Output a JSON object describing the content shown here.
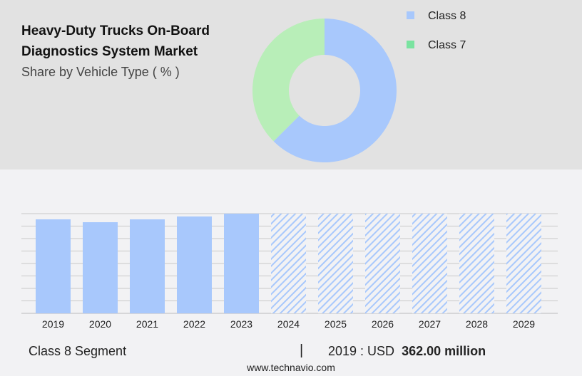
{
  "header": {
    "title_line1": "Heavy-Duty Trucks On-Board",
    "title_line2": "Diagnostics System Market",
    "subtitle": "Share by Vehicle Type ( % )"
  },
  "chart_data": [
    {
      "type": "pie",
      "variant": "donut",
      "title": "Heavy-Duty Trucks On-Board Diagnostics System Market",
      "subtitle": "Share by Vehicle Type ( % )",
      "legend_position": "right",
      "slices": [
        {
          "name": "Class 8",
          "value": 62.5,
          "color": "#a8c8fc"
        },
        {
          "name": "Class 7",
          "value": 37.5,
          "color": "#b8eeb8"
        }
      ],
      "legend_colors": [
        "#a8c8fc",
        "#7ae3a0"
      ]
    },
    {
      "type": "bar",
      "categories": [
        "2019",
        "2020",
        "2021",
        "2022",
        "2023",
        "2024",
        "2025",
        "2026",
        "2027",
        "2028",
        "2029"
      ],
      "values": [
        362,
        351,
        362,
        373,
        384,
        null,
        null,
        null,
        null,
        null,
        null
      ],
      "forecast_categories": [
        "2024",
        "2025",
        "2026",
        "2027",
        "2028",
        "2029"
      ],
      "ylim": [
        0,
        384
      ],
      "grid": true,
      "color": "#a8c8fc"
    }
  ],
  "footer": {
    "segment": "Class 8 Segment",
    "separator": "|",
    "year_label": "2019 : USD",
    "value": "362.00 million",
    "url": "www.technavio.com"
  }
}
